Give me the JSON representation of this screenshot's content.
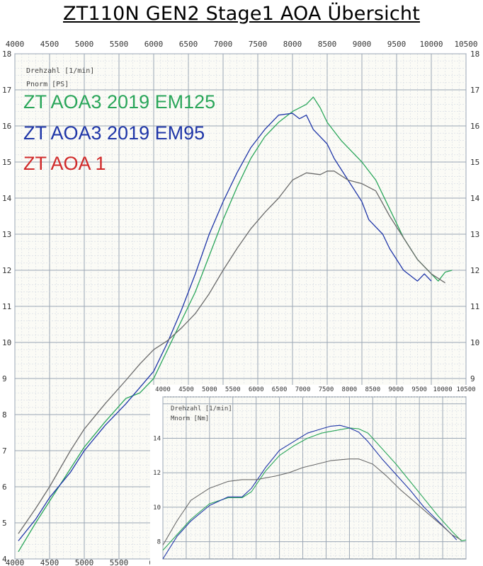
{
  "page_title": "ZT110N GEN2 Stage1 AOA Übersicht",
  "chart_data": [
    {
      "type": "line",
      "id": "power",
      "ylabel": "Pnorm [PS]",
      "xlabel": "Drehzahl [1/min]",
      "xlim": [
        4000,
        10500
      ],
      "ylim": [
        4,
        18
      ],
      "x_ticks": [
        "4000",
        "4500",
        "5000",
        "5500",
        "6000",
        "6500",
        "7000",
        "7500",
        "8000",
        "8500",
        "9000",
        "9500",
        "10000",
        "10500"
      ],
      "y_ticks": [
        "4",
        "5",
        "6",
        "7",
        "8",
        "9",
        "10",
        "11",
        "12",
        "13",
        "14",
        "15",
        "16",
        "17",
        "18"
      ],
      "bottom_x_ticks": [
        "4000",
        "4500",
        "5000",
        "5500",
        "60"
      ],
      "grid": true,
      "legend_position": "top-left",
      "series": [
        {
          "name": "ZT AOA3 2019 EM125",
          "color": "#2aa65a",
          "points": [
            [
              4050,
              4.2
            ],
            [
              4300,
              5.0
            ],
            [
              4500,
              5.6
            ],
            [
              4800,
              6.5
            ],
            [
              5000,
              7.1
            ],
            [
              5300,
              7.8
            ],
            [
              5600,
              8.45
            ],
            [
              5800,
              8.6
            ],
            [
              6000,
              9.0
            ],
            [
              6200,
              9.8
            ],
            [
              6400,
              10.6
            ],
            [
              6600,
              11.4
            ],
            [
              6800,
              12.4
            ],
            [
              7000,
              13.4
            ],
            [
              7200,
              14.3
            ],
            [
              7400,
              15.1
            ],
            [
              7600,
              15.7
            ],
            [
              7800,
              16.1
            ],
            [
              8000,
              16.4
            ],
            [
              8200,
              16.6
            ],
            [
              8300,
              16.8
            ],
            [
              8400,
              16.5
            ],
            [
              8500,
              16.1
            ],
            [
              8700,
              15.6
            ],
            [
              8900,
              15.2
            ],
            [
              9000,
              15.0
            ],
            [
              9200,
              14.5
            ],
            [
              9400,
              13.7
            ],
            [
              9600,
              12.9
            ],
            [
              9800,
              12.3
            ],
            [
              10000,
              11.9
            ],
            [
              10100,
              11.7
            ],
            [
              10200,
              11.95
            ],
            [
              10300,
              12.0
            ]
          ]
        },
        {
          "name": "ZT AOA3 2019 EM95",
          "color": "#1f36a8",
          "points": [
            [
              4050,
              4.5
            ],
            [
              4300,
              5.1
            ],
            [
              4500,
              5.7
            ],
            [
              4800,
              6.4
            ],
            [
              5000,
              7.0
            ],
            [
              5300,
              7.7
            ],
            [
              5600,
              8.3
            ],
            [
              5800,
              8.75
            ],
            [
              6000,
              9.2
            ],
            [
              6200,
              10.0
            ],
            [
              6400,
              10.9
            ],
            [
              6600,
              11.9
            ],
            [
              6800,
              13.0
            ],
            [
              7000,
              13.9
            ],
            [
              7200,
              14.7
            ],
            [
              7400,
              15.4
            ],
            [
              7600,
              15.9
            ],
            [
              7800,
              16.3
            ],
            [
              8000,
              16.35
            ],
            [
              8100,
              16.2
            ],
            [
              8200,
              16.3
            ],
            [
              8300,
              15.9
            ],
            [
              8500,
              15.5
            ],
            [
              8600,
              15.1
            ],
            [
              8800,
              14.5
            ],
            [
              9000,
              13.9
            ],
            [
              9100,
              13.4
            ],
            [
              9300,
              13.0
            ],
            [
              9400,
              12.6
            ],
            [
              9600,
              12.0
            ],
            [
              9800,
              11.7
            ],
            [
              9900,
              11.9
            ],
            [
              10000,
              11.7
            ]
          ]
        },
        {
          "name": "ZT AOA 1",
          "color": "#6b6b6b",
          "points": [
            [
              4050,
              4.7
            ],
            [
              4300,
              5.4
            ],
            [
              4500,
              6.0
            ],
            [
              4800,
              7.0
            ],
            [
              5000,
              7.6
            ],
            [
              5300,
              8.3
            ],
            [
              5600,
              8.95
            ],
            [
              5800,
              9.4
            ],
            [
              6000,
              9.8
            ],
            [
              6200,
              10.05
            ],
            [
              6400,
              10.4
            ],
            [
              6600,
              10.8
            ],
            [
              6800,
              11.35
            ],
            [
              7000,
              12.0
            ],
            [
              7200,
              12.6
            ],
            [
              7400,
              13.15
            ],
            [
              7600,
              13.6
            ],
            [
              7800,
              14.0
            ],
            [
              8000,
              14.5
            ],
            [
              8200,
              14.7
            ],
            [
              8400,
              14.65
            ],
            [
              8500,
              14.75
            ],
            [
              8600,
              14.75
            ],
            [
              8800,
              14.5
            ],
            [
              9000,
              14.4
            ],
            [
              9200,
              14.2
            ],
            [
              9400,
              13.5
            ],
            [
              9600,
              12.9
            ],
            [
              9800,
              12.3
            ],
            [
              10000,
              11.9
            ],
            [
              10200,
              11.65
            ]
          ]
        }
      ]
    },
    {
      "type": "line",
      "id": "torque",
      "ylabel": "Mnorm [Nm]",
      "xlabel": "Drehzahl [1/min]",
      "xlim": [
        4000,
        10500
      ],
      "ylim": [
        7,
        16.4
      ],
      "x_ticks": [
        "4000",
        "4500",
        "5000",
        "5500",
        "6000",
        "6500",
        "7000",
        "7500",
        "8000",
        "8500",
        "9000",
        "9500",
        "10000",
        "10500"
      ],
      "y_ticks": [
        "8",
        "10",
        "12",
        "14"
      ],
      "grid": true,
      "series": [
        {
          "name": "ZT AOA3 2019 EM125",
          "color": "#2aa65a",
          "points": [
            [
              4000,
              7.5
            ],
            [
              4300,
              8.4
            ],
            [
              4600,
              9.3
            ],
            [
              5000,
              10.2
            ],
            [
              5400,
              10.55
            ],
            [
              5700,
              10.55
            ],
            [
              5900,
              10.9
            ],
            [
              6200,
              12.1
            ],
            [
              6500,
              13.0
            ],
            [
              6800,
              13.55
            ],
            [
              7100,
              14.0
            ],
            [
              7400,
              14.3
            ],
            [
              7600,
              14.4
            ],
            [
              7800,
              14.5
            ],
            [
              8000,
              14.6
            ],
            [
              8200,
              14.55
            ],
            [
              8400,
              14.3
            ],
            [
              8700,
              13.4
            ],
            [
              9000,
              12.5
            ],
            [
              9300,
              11.5
            ],
            [
              9600,
              10.5
            ],
            [
              9900,
              9.5
            ],
            [
              10200,
              8.6
            ],
            [
              10400,
              8.05
            ],
            [
              10500,
              8.1
            ]
          ]
        },
        {
          "name": "ZT AOA3 2019 EM95",
          "color": "#1f36a8",
          "points": [
            [
              4000,
              7.0
            ],
            [
              4300,
              8.3
            ],
            [
              4600,
              9.2
            ],
            [
              5000,
              10.1
            ],
            [
              5400,
              10.6
            ],
            [
              5700,
              10.6
            ],
            [
              5900,
              11.1
            ],
            [
              6200,
              12.3
            ],
            [
              6500,
              13.3
            ],
            [
              6800,
              13.8
            ],
            [
              7100,
              14.3
            ],
            [
              7400,
              14.55
            ],
            [
              7600,
              14.7
            ],
            [
              7800,
              14.75
            ],
            [
              8000,
              14.6
            ],
            [
              8200,
              14.35
            ],
            [
              8400,
              13.8
            ],
            [
              8700,
              12.8
            ],
            [
              9000,
              11.9
            ],
            [
              9300,
              11.0
            ],
            [
              9600,
              10.0
            ],
            [
              9900,
              9.2
            ],
            [
              10200,
              8.4
            ],
            [
              10300,
              8.1
            ]
          ]
        },
        {
          "name": "ZT AOA 1",
          "color": "#6b6b6b",
          "points": [
            [
              4000,
              7.8
            ],
            [
              4300,
              9.2
            ],
            [
              4600,
              10.4
            ],
            [
              5000,
              11.1
            ],
            [
              5400,
              11.5
            ],
            [
              5700,
              11.6
            ],
            [
              6000,
              11.6
            ],
            [
              6400,
              11.8
            ],
            [
              6700,
              12.0
            ],
            [
              7000,
              12.3
            ],
            [
              7300,
              12.5
            ],
            [
              7600,
              12.7
            ],
            [
              8000,
              12.8
            ],
            [
              8200,
              12.8
            ],
            [
              8500,
              12.5
            ],
            [
              8800,
              11.8
            ],
            [
              9100,
              11.0
            ],
            [
              9400,
              10.3
            ],
            [
              9700,
              9.6
            ],
            [
              10000,
              8.9
            ],
            [
              10200,
              8.4
            ],
            [
              10400,
              8.1
            ]
          ]
        }
      ]
    }
  ]
}
